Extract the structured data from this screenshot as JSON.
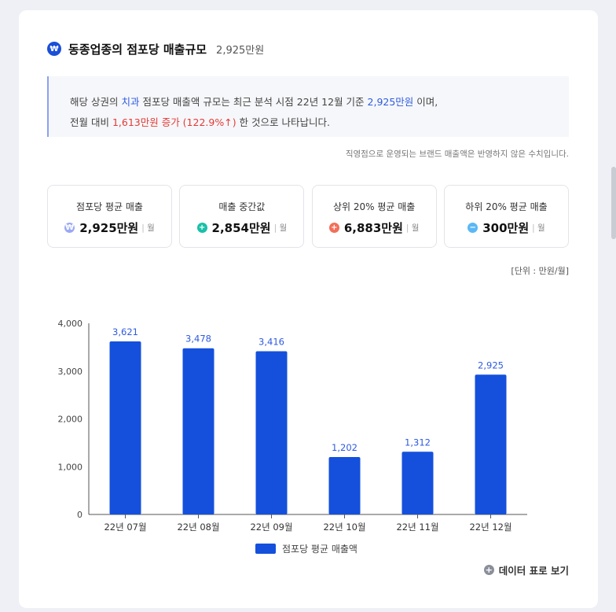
{
  "header": {
    "title": "동종업종의 점포당 매출규모",
    "value": "2,925만원",
    "icon": "won-icon"
  },
  "summary": {
    "part1": "해당 상권의 ",
    "industry": "치과",
    "part2": " 점포당 매출액 규모는 최근 분석 시점 22년 12월 기준 ",
    "amount": "2,925만원",
    "part3": " 이며,",
    "part4": "전월 대비 ",
    "change": "1,613만원 증가 (122.9%↑)",
    "part5": " 한 것으로 나타납니다."
  },
  "note": "직영점으로 운영되는 브랜드 매출액은 반영하지 않은 수치입니다.",
  "stats": [
    {
      "label": "점포당 평균 매출",
      "value": "2,925만원",
      "unit": "월",
      "icon": "won-icon",
      "color": "#9aa9f3",
      "glyph": "₩"
    },
    {
      "label": "매출 중간값",
      "value": "2,854만원",
      "unit": "월",
      "icon": "median-icon",
      "color": "#19c0a8",
      "glyph": "+"
    },
    {
      "label": "상위 20% 평균 매출",
      "value": "6,883만원",
      "unit": "월",
      "icon": "plus-icon",
      "color": "#f26f5a",
      "glyph": "+"
    },
    {
      "label": "하위 20% 평균 매출",
      "value": "300만원",
      "unit": "월",
      "icon": "minus-icon",
      "color": "#5bb8f5",
      "glyph": "−"
    }
  ],
  "unit_note": "[단위 : 만원/월]",
  "chart_data": {
    "type": "bar",
    "categories": [
      "22년 07월",
      "22년 08월",
      "22년 09월",
      "22년 10월",
      "22년 11월",
      "22년 12월"
    ],
    "series": [
      {
        "name": "점포당 평균 매출액",
        "values": [
          3621,
          3478,
          3416,
          1202,
          1312,
          2925
        ],
        "color": "#1450dc"
      }
    ],
    "data_labels": [
      "3,621",
      "3,478",
      "3,416",
      "1,202",
      "1,312",
      "2,925"
    ],
    "yticks": [
      "0",
      "1,000",
      "2,000",
      "3,000",
      "4,000"
    ],
    "ylim": [
      0,
      4000
    ],
    "legend": "bottom-center"
  },
  "legend_label": "점포당 평균 매출액",
  "table_toggle": "데이터 표로 보기"
}
